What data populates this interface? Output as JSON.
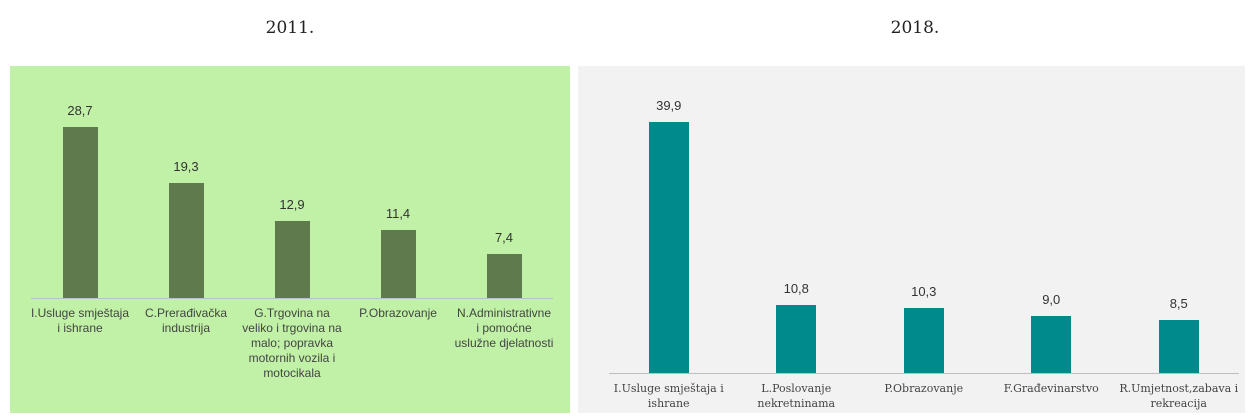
{
  "chart_data": [
    {
      "type": "bar",
      "title": "2011.",
      "categories": [
        "I.Usluge smještaja i ishrane",
        "C.Prerađivačka industrija",
        "G.Trgovina na veliko i trgovina na malo; popravka motornih vozila i motocikala",
        "P.Obrazovanje",
        "N.Administrativne i pomoćne uslužne djelatnosti"
      ],
      "values": [
        28.7,
        19.3,
        12.9,
        11.4,
        7.4
      ],
      "value_labels": [
        "28,7",
        "19,3",
        "12,9",
        "11,4",
        "7,4"
      ],
      "color": "#5f7a4d"
    },
    {
      "type": "bar",
      "title": "2018.",
      "categories": [
        "I.Usluge smještaja i ishrane",
        "L.Poslovanje nekretninama",
        "P.Obrazovanje",
        "F.Građevinarstvo",
        "R.Umjetnost,zabava i rekreacija"
      ],
      "values": [
        39.9,
        10.8,
        10.3,
        9.0,
        8.5
      ],
      "value_labels": [
        "39,9",
        "10,8",
        "10,3",
        "9,0",
        "8,5"
      ],
      "color": "#008a8c"
    }
  ]
}
